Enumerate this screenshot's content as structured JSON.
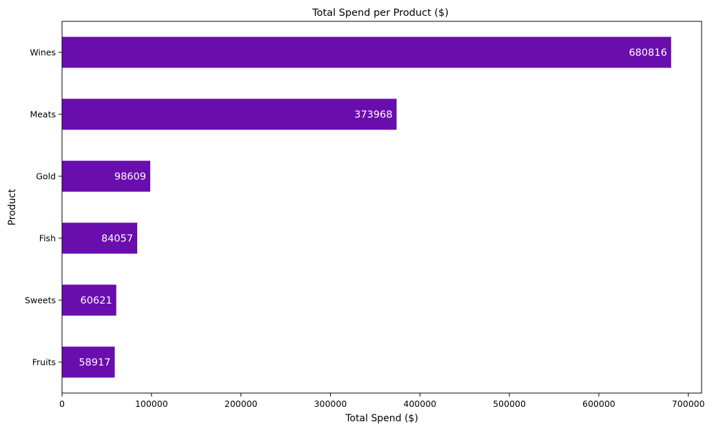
{
  "chart_data": {
    "type": "bar",
    "orientation": "horizontal",
    "title": "Total Spend per Product ($)",
    "xlabel": "Total Spend ($)",
    "ylabel": "Product",
    "categories": [
      "Wines",
      "Meats",
      "Gold",
      "Fish",
      "Sweets",
      "Fruits"
    ],
    "values": [
      680816,
      373968,
      98609,
      84057,
      60621,
      58917
    ],
    "data_labels": [
      "680816",
      "373968",
      "98609",
      "84057",
      "60621",
      "58917"
    ],
    "xlim": [
      0,
      714857
    ],
    "xticks": [
      0,
      100000,
      200000,
      300000,
      400000,
      500000,
      600000,
      700000
    ],
    "xtick_labels": [
      "0",
      "100000",
      "200000",
      "300000",
      "400000",
      "500000",
      "600000",
      "700000"
    ],
    "grid": false,
    "legend": "none",
    "bar_color": "#6a0dad",
    "label_color": "#ffffff"
  }
}
